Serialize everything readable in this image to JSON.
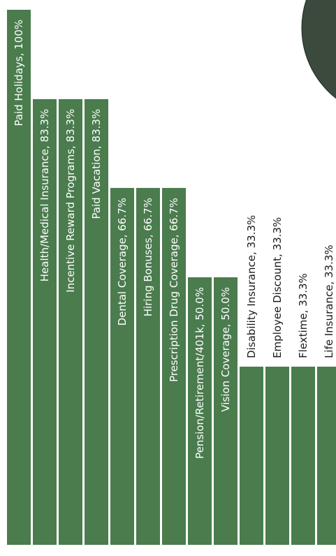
{
  "chart_data": {
    "type": "bar",
    "orientation": "vertical",
    "categories": [
      "Paid Holidays",
      "Health/Medical Insurance",
      "Incentive Reward Programs",
      "Paid Vacation",
      "Dental Coverage",
      "Hiring Bonuses",
      "Prescription Drug Coverage",
      "Pension/Retirement/401k",
      "Vision Coverage",
      "Disability Insurance",
      "Employee Discount",
      "Flextime",
      "Life Insurance"
    ],
    "values": [
      100,
      83.3,
      83.3,
      83.3,
      66.7,
      66.7,
      66.7,
      50.0,
      50.0,
      33.3,
      33.3,
      33.3,
      33.3
    ],
    "data_labels": [
      "Paid Holidays, 100%",
      "Health/Medical Insurance, 83.3%",
      "Incentive Reward Programs, 83.3%",
      "Paid Vacation, 83.3%",
      "Dental Coverage, 66.7%",
      "Hiring Bonuses, 66.7%",
      "Prescription Drug Coverage, 66.7%",
      "Pension/Retirement/401k, 50.0%",
      "Vision Coverage, 50.0%",
      "Disability Insurance, 33.3%",
      "Employee Discount, 33.3%",
      "Flextime, 33.3%",
      "Life Insurance, 33.3%"
    ],
    "ylim": [
      0,
      100
    ],
    "grid": false,
    "legend": "none",
    "bar_color": "#4a7c4d",
    "decoration_color": "#3b4a3c"
  }
}
